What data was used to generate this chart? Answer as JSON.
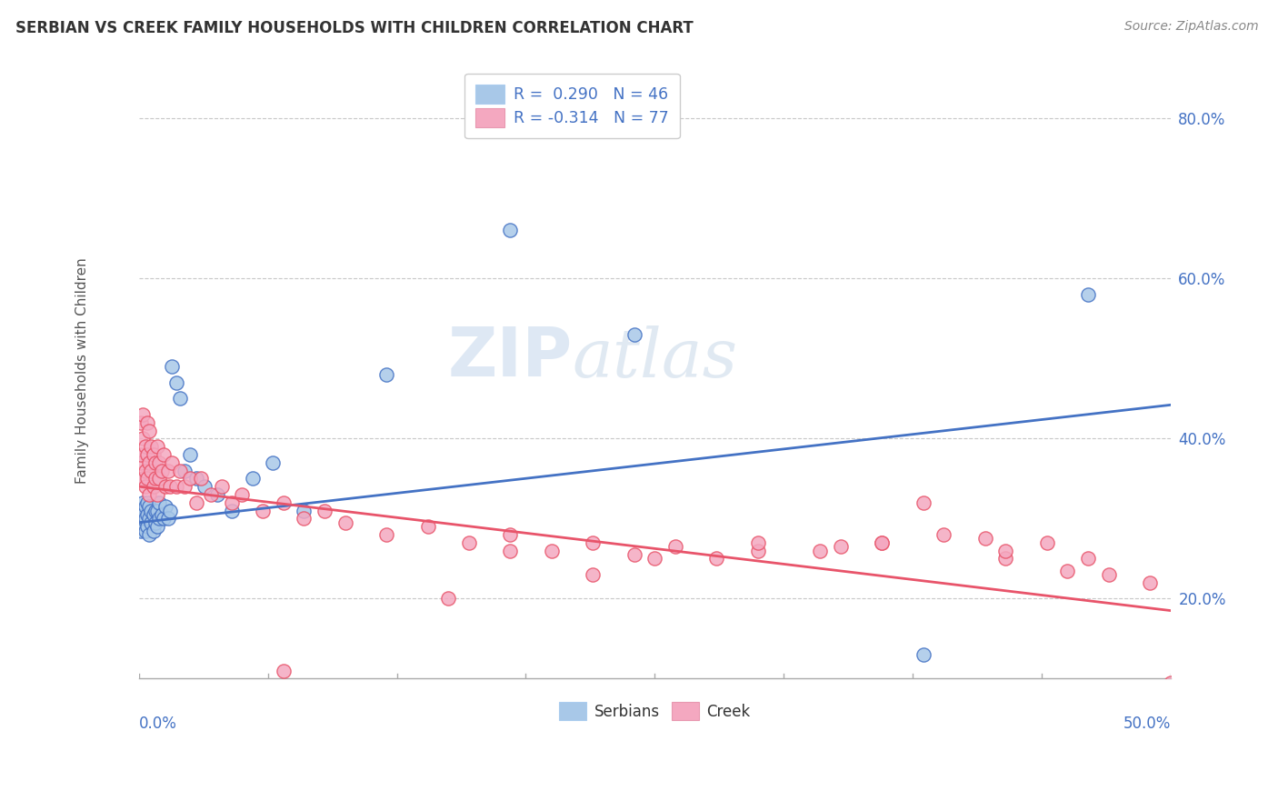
{
  "title": "SERBIAN VS CREEK FAMILY HOUSEHOLDS WITH CHILDREN CORRELATION CHART",
  "source": "Source: ZipAtlas.com",
  "xmin": 0.0,
  "xmax": 0.5,
  "ymin": 0.1,
  "ymax": 0.87,
  "ylabel_ticks": [
    0.2,
    0.4,
    0.6,
    0.8
  ],
  "ylabel_labels": [
    "20.0%",
    "40.0%",
    "60.0%",
    "80.0%"
  ],
  "legend_text1": "R =  0.290   N = 46",
  "legend_text2": "R = -0.314   N = 77",
  "serbian_color": "#a8c8e8",
  "creek_color": "#f4a8c0",
  "serbian_line_color": "#4472c4",
  "creek_line_color": "#e8546a",
  "watermark_zip": "ZIP",
  "watermark_atlas": "atlas",
  "background_color": "#ffffff",
  "grid_color": "#c8c8c8",
  "serbian_x": [
    0.001,
    0.001,
    0.002,
    0.002,
    0.002,
    0.003,
    0.003,
    0.003,
    0.004,
    0.004,
    0.004,
    0.005,
    0.005,
    0.005,
    0.006,
    0.006,
    0.007,
    0.007,
    0.008,
    0.008,
    0.009,
    0.009,
    0.01,
    0.01,
    0.011,
    0.012,
    0.013,
    0.014,
    0.015,
    0.016,
    0.018,
    0.02,
    0.022,
    0.025,
    0.028,
    0.032,
    0.038,
    0.045,
    0.055,
    0.065,
    0.08,
    0.12,
    0.18,
    0.24,
    0.38,
    0.46
  ],
  "serbian_y": [
    0.285,
    0.295,
    0.3,
    0.31,
    0.32,
    0.285,
    0.3,
    0.315,
    0.29,
    0.305,
    0.32,
    0.28,
    0.3,
    0.315,
    0.295,
    0.31,
    0.285,
    0.305,
    0.295,
    0.31,
    0.29,
    0.31,
    0.3,
    0.32,
    0.305,
    0.3,
    0.315,
    0.3,
    0.31,
    0.49,
    0.47,
    0.45,
    0.36,
    0.38,
    0.35,
    0.34,
    0.33,
    0.31,
    0.35,
    0.37,
    0.31,
    0.48,
    0.66,
    0.53,
    0.13,
    0.58
  ],
  "creek_x": [
    0.001,
    0.001,
    0.001,
    0.002,
    0.002,
    0.002,
    0.003,
    0.003,
    0.003,
    0.004,
    0.004,
    0.004,
    0.005,
    0.005,
    0.005,
    0.006,
    0.006,
    0.007,
    0.007,
    0.008,
    0.008,
    0.009,
    0.009,
    0.01,
    0.01,
    0.011,
    0.012,
    0.013,
    0.014,
    0.015,
    0.016,
    0.018,
    0.02,
    0.022,
    0.025,
    0.028,
    0.03,
    0.035,
    0.04,
    0.045,
    0.05,
    0.06,
    0.07,
    0.08,
    0.09,
    0.1,
    0.12,
    0.14,
    0.16,
    0.18,
    0.2,
    0.22,
    0.24,
    0.26,
    0.28,
    0.3,
    0.33,
    0.36,
    0.39,
    0.42,
    0.45,
    0.47,
    0.49,
    0.5,
    0.38,
    0.41,
    0.34,
    0.3,
    0.36,
    0.25,
    0.18,
    0.15,
    0.22,
    0.07,
    0.44,
    0.42,
    0.46
  ],
  "creek_y": [
    0.37,
    0.42,
    0.38,
    0.4,
    0.35,
    0.43,
    0.36,
    0.39,
    0.34,
    0.38,
    0.42,
    0.35,
    0.37,
    0.33,
    0.41,
    0.36,
    0.39,
    0.34,
    0.38,
    0.35,
    0.37,
    0.33,
    0.39,
    0.35,
    0.37,
    0.36,
    0.38,
    0.34,
    0.36,
    0.34,
    0.37,
    0.34,
    0.36,
    0.34,
    0.35,
    0.32,
    0.35,
    0.33,
    0.34,
    0.32,
    0.33,
    0.31,
    0.32,
    0.3,
    0.31,
    0.295,
    0.28,
    0.29,
    0.27,
    0.28,
    0.26,
    0.27,
    0.255,
    0.265,
    0.25,
    0.26,
    0.26,
    0.27,
    0.28,
    0.25,
    0.235,
    0.23,
    0.22,
    0.095,
    0.32,
    0.275,
    0.265,
    0.27,
    0.27,
    0.25,
    0.26,
    0.2,
    0.23,
    0.11,
    0.27,
    0.26,
    0.25
  ],
  "serbian_trend_x0": 0.0,
  "serbian_trend_y0": 0.295,
  "serbian_trend_x1": 0.5,
  "serbian_trend_y1": 0.442,
  "creek_trend_x0": 0.0,
  "creek_trend_y0": 0.34,
  "creek_trend_x1": 0.5,
  "creek_trend_y1": 0.185
}
